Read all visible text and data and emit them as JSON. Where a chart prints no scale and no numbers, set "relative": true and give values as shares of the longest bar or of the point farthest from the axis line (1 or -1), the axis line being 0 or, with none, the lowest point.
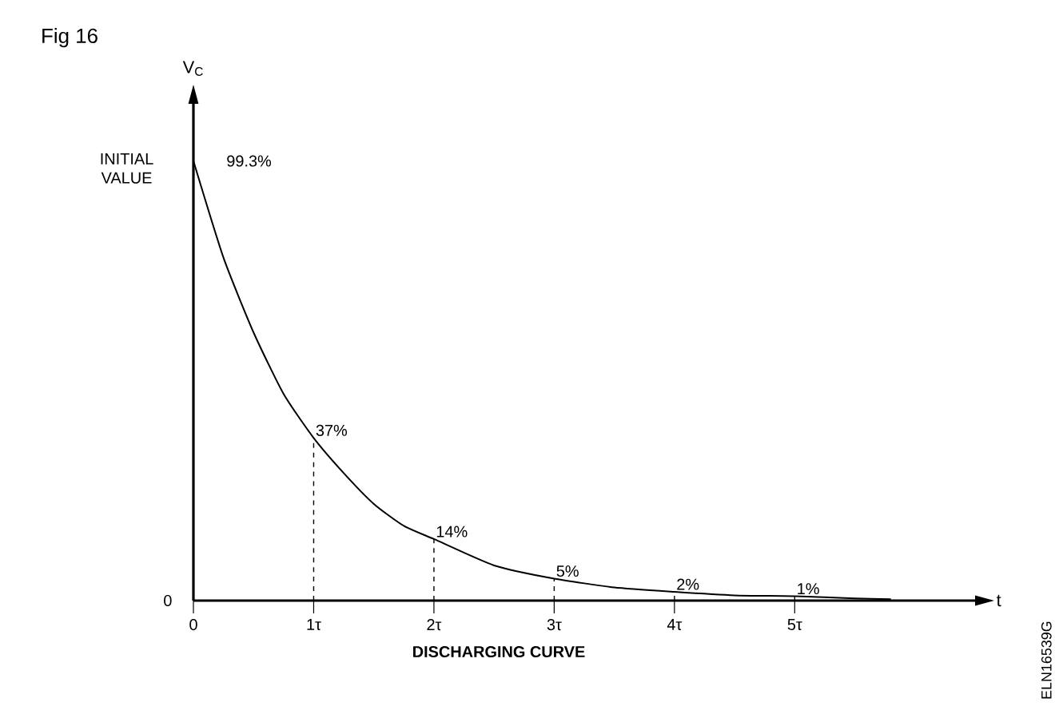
{
  "chart_data": {
    "type": "line",
    "title": "Fig 16",
    "subtitle": "DISCHARGING CURVE",
    "ylabel": "V$_{C}$",
    "xlabel": "t",
    "relative": true,
    "x": [
      0,
      0.25,
      0.5,
      0.75,
      1,
      1.25,
      1.5,
      1.75,
      2,
      2.5,
      3,
      3.5,
      4,
      4.5,
      5,
      5.5,
      5.8
    ],
    "series": [
      {
        "color": "#000000",
        "values": [
          1,
          0.78,
          0.61,
          0.47,
          0.37,
          0.29,
          0.22,
          0.17,
          0.14,
          0.08,
          0.05,
          0.03,
          0.02,
          0.012,
          0.01,
          0.005,
          0.003
        ]
      }
    ],
    "xlim": [
      0,
      6.5
    ],
    "xticks": [
      0,
      {
        "value": 1,
        "label": "1τ"
      },
      {
        "value": 2,
        "label": "2τ"
      },
      {
        "value": 3,
        "label": "3τ"
      },
      {
        "value": 4,
        "label": "4τ"
      },
      {
        "value": 5,
        "label": "5τ"
      }
    ],
    "annotations": [
      "99.3%",
      "INITIAL VALUE",
      "0",
      {
        "text": "37%",
        "x": 1,
        "y": 0.37
      },
      {
        "text": "14%",
        "x": 2,
        "y": 0.14
      },
      {
        "text": "5%",
        "x": 3,
        "y": 0.05
      },
      {
        "text": "2%",
        "x": 4,
        "y": 0.02
      },
      {
        "text": "1%",
        "x": 5,
        "y": 0.01
      },
      "ELN16539G"
    ]
  }
}
